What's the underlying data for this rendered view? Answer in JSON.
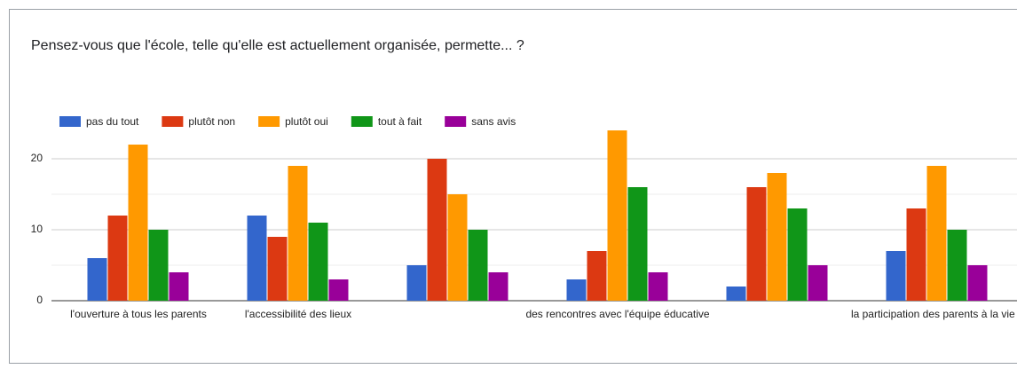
{
  "chart_data": {
    "type": "bar",
    "title": "Pensez-vous que l'école, telle qu'elle est actuellement organisée, permette... ?",
    "categories": [
      "l'ouverture à tous les parents",
      "l'accessibilité des lieux",
      null,
      "des rencontres avec l'équipe éducative",
      null,
      "la participation des parents à la vie s"
    ],
    "series": [
      {
        "name": "pas du tout",
        "color": "#3366cc",
        "values": [
          6,
          12,
          5,
          3,
          2,
          7
        ]
      },
      {
        "name": "plutôt non",
        "color": "#dc3912",
        "values": [
          12,
          9,
          20,
          7,
          16,
          13
        ]
      },
      {
        "name": "plutôt oui",
        "color": "#ff9900",
        "values": [
          22,
          19,
          15,
          24,
          18,
          19
        ]
      },
      {
        "name": "tout à fait",
        "color": "#109618",
        "values": [
          10,
          11,
          10,
          16,
          13,
          10
        ]
      },
      {
        "name": "sans avis",
        "color": "#990099",
        "values": [
          4,
          3,
          4,
          4,
          5,
          5
        ]
      }
    ],
    "ylim": [
      0,
      25
    ],
    "yticks": [
      0,
      10,
      20
    ],
    "minor_yticks": [
      5,
      15
    ],
    "grid": true,
    "legend": "top"
  }
}
